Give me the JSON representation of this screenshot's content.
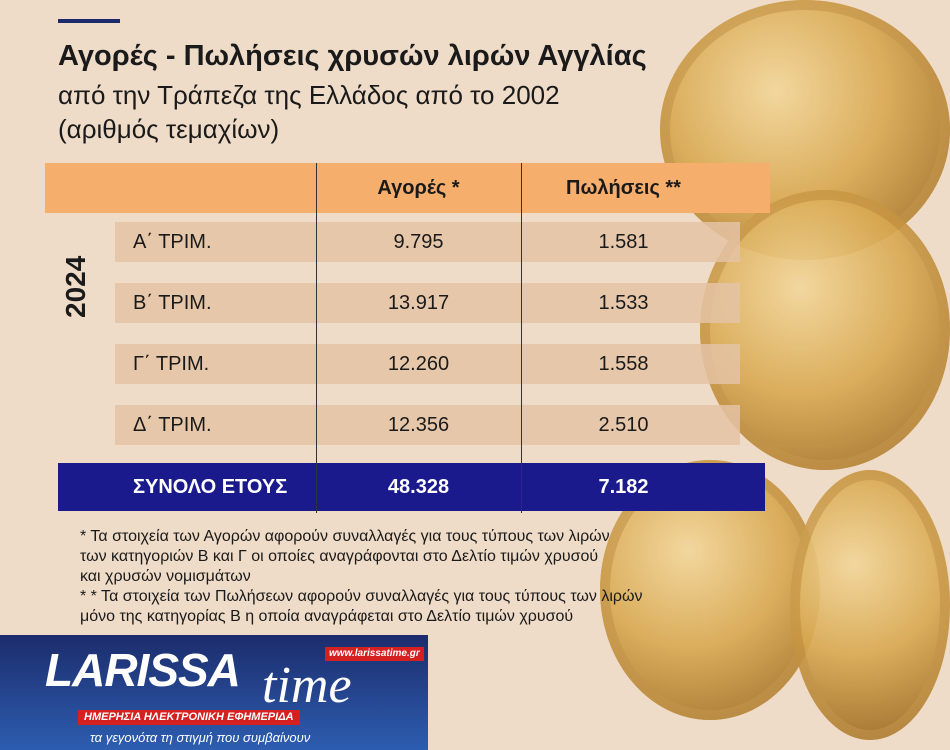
{
  "title": "Αγορές -  Πωλήσεις χρυσών λιρών Αγγλίας",
  "subtitle": "από την Τράπεζα της Ελλάδος από το 2002",
  "unit": "(αριθμός τεμαχίων)",
  "table": {
    "headers": [
      "Αγορές *",
      "Πωλήσεις **"
    ],
    "year": "2024",
    "rows": [
      {
        "label": "Α΄ ΤΡΙΜ.",
        "buys": "9.795",
        "sales": "1.581"
      },
      {
        "label": "Β΄ ΤΡΙΜ.",
        "buys": "13.917",
        "sales": "1.533"
      },
      {
        "label": "Γ΄ ΤΡΙΜ.",
        "buys": "12.260",
        "sales": "1.558"
      },
      {
        "label": "Δ΄ ΤΡΙΜ.",
        "buys": "12.356",
        "sales": "2.510"
      }
    ],
    "total": {
      "label": "ΣΥΝΟΛΟ ΕΤΟΥΣ",
      "buys": "48.328",
      "sales": "7.182"
    }
  },
  "notes": [
    "*  Τα στοιχεία των Αγορών αφορούν συναλλαγές για τους τύπους των λιρών",
    "των κατηγοριών Β και Γ οι οποίες αναγράφονται στο Δελτίο τιμών χρυσού",
    "και χρυσών νομισμάτων",
    "* * Τα στοιχεία των Πωλήσεων αφορούν συναλλαγές για τους τύπους των λιρών",
    " μόνο της κατηγορίας Β η οποία αναγράφεται στο Δελτίο τιμών χρυσού"
  ],
  "logo": {
    "brand": "LARISSA",
    "brand2": "time",
    "url": "www.larissatime.gr",
    "tagline": "ΗΜΕΡΗΣΙΑ ΗΛΕΚΤΡΟΝΙΚΗ ΕΦΗΜΕΡΙΔΑ",
    "slogan": "τα γεγονότα τη στιγμή που συμβαίνουν"
  },
  "colors": {
    "header": "#f5ae6b",
    "total": "#1a1a8c",
    "background": "#efdcc8"
  }
}
